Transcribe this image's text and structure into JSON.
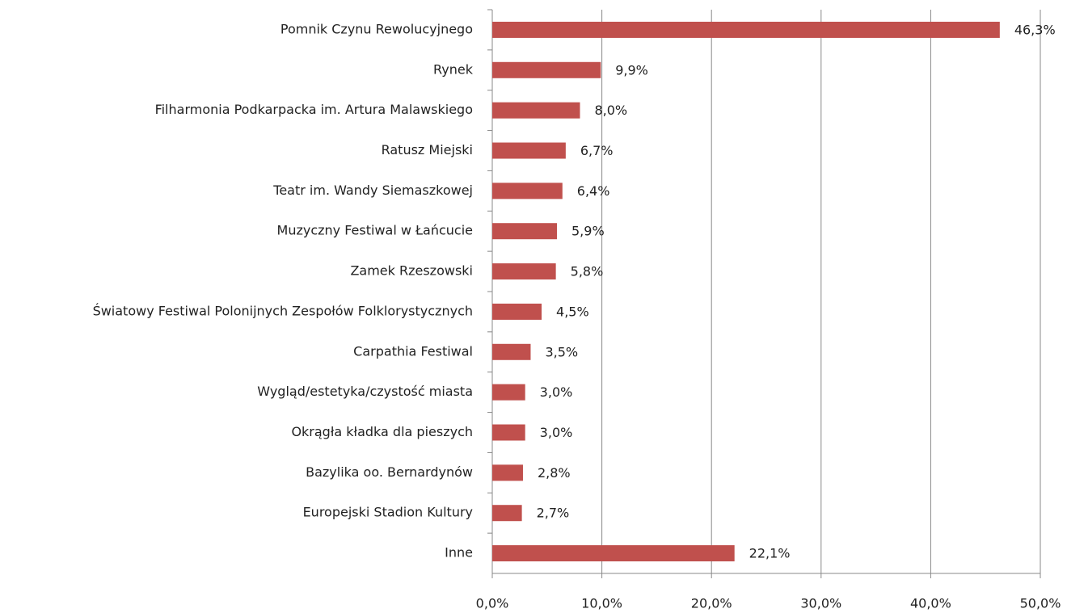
{
  "chart_data": {
    "type": "bar",
    "orientation": "horizontal",
    "categories": [
      "Pomnik Czynu Rewolucyjnego",
      "Rynek",
      "Filharmonia Podkarpacka im. Artura Malawskiego",
      "Ratusz Miejski",
      "Teatr im. Wandy Siemaszkowej",
      "Muzyczny Festiwal w Łańcucie",
      "Zamek Rzeszowski",
      "Światowy Festiwal Polonijnych Zespołów Folklorystycznych",
      "Carpathia Festiwal",
      "Wygląd/estetyka/czystość miasta",
      "Okrągła kładka dla pieszych",
      "Bazylika oo. Bernardynów",
      "Europejski Stadion Kultury",
      "Inne"
    ],
    "values": [
      46.3,
      9.9,
      8.0,
      6.7,
      6.4,
      5.9,
      5.8,
      4.5,
      3.5,
      3.0,
      3.0,
      2.8,
      2.7,
      22.1
    ],
    "value_labels": [
      "46,3%",
      "9,9%",
      "8,0%",
      "6,7%",
      "6,4%",
      "5,9%",
      "5,8%",
      "4,5%",
      "3,5%",
      "3,0%",
      "3,0%",
      "2,8%",
      "2,7%",
      "22,1%"
    ],
    "color": "#c0504d",
    "xlim": [
      0,
      50
    ],
    "xticks": [
      {
        "value": 0,
        "label": "0,0%"
      },
      {
        "value": 10,
        "label": "10,0%"
      },
      {
        "value": 20,
        "label": "20,0%"
      },
      {
        "value": 30,
        "label": "30,0%"
      },
      {
        "value": 40,
        "label": "40,0%"
      },
      {
        "value": 50,
        "label": "50,0%"
      }
    ],
    "grid": true
  }
}
